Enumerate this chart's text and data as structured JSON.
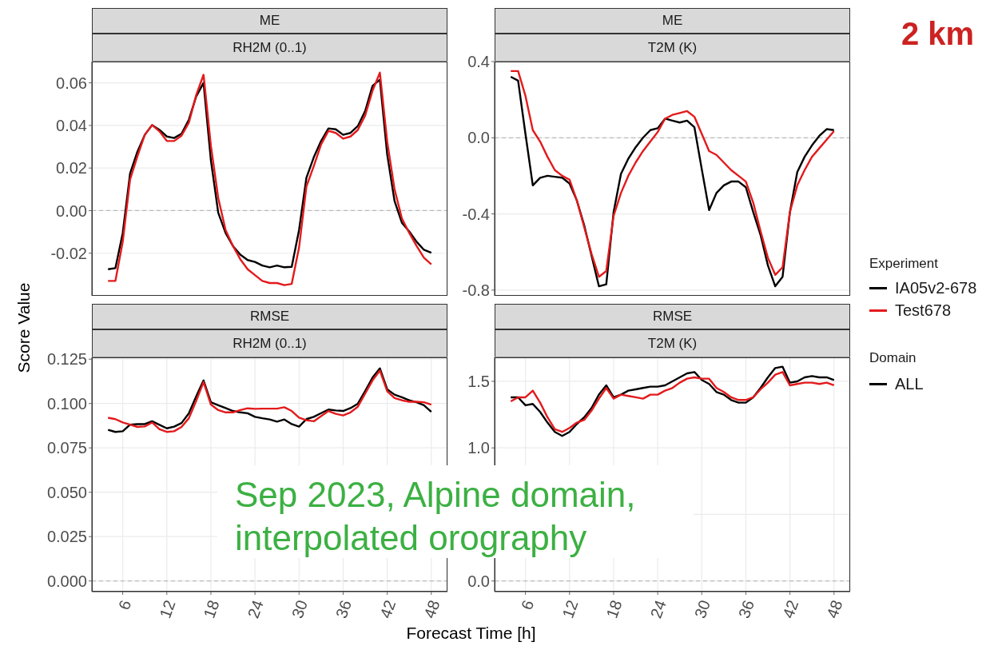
{
  "chart_data": [
    {
      "type": "line",
      "title": "ME",
      "subtitle": "RH2M (0..1)",
      "ylabel": "Score Value",
      "x": [
        4,
        5,
        6,
        7,
        8,
        9,
        10,
        11,
        12,
        13,
        14,
        15,
        16,
        17,
        18,
        19,
        20,
        21,
        22,
        23,
        24,
        25,
        26,
        27,
        28,
        29,
        30,
        31,
        32,
        33,
        34,
        35,
        36,
        37,
        38,
        39,
        40,
        41,
        42,
        43,
        44,
        45,
        46,
        47,
        48
      ],
      "xlim": [
        1.8,
        50.2
      ],
      "xticks": [
        6,
        12,
        18,
        24,
        30,
        36,
        42,
        48
      ],
      "ylim": [
        -0.04,
        0.07
      ],
      "yticks": [
        -0.02,
        {
          "value": 0,
          "label": "0.00"
        },
        0.02,
        0.04,
        0.06
      ],
      "grid": true,
      "tick_labels": "y",
      "line_style": "solid",
      "marker": "none",
      "legend": "right",
      "legend_title": "Experiment",
      "annotations": [
        "Domain",
        "ALL"
      ],
      "ref_lines": [
        {
          "axis": "y",
          "value": 0,
          "color": "#bbbbbb",
          "line_style": "dashed"
        }
      ],
      "series": [
        {
          "name": "IA05v2-678",
          "color": "#000000",
          "values": [
            -0.0275,
            -0.027,
            -0.0105,
            0.0175,
            0.0277,
            0.0356,
            0.0402,
            0.0379,
            0.0348,
            0.0341,
            0.0361,
            0.0427,
            0.0536,
            0.06,
            0.0236,
            -0.001,
            -0.0105,
            -0.0166,
            -0.0207,
            -0.0232,
            -0.0241,
            -0.0258,
            -0.0266,
            -0.0258,
            -0.0266,
            -0.0264,
            -0.0091,
            0.0154,
            0.025,
            0.0327,
            0.0386,
            0.0382,
            0.0356,
            0.0365,
            0.0397,
            0.0468,
            0.0586,
            0.0615,
            0.0263,
            0.0045,
            -0.0057,
            -0.0098,
            -0.0146,
            -0.0184,
            -0.0198
          ]
        },
        {
          "name": "Test678",
          "color": "#e31a1c",
          "values": [
            -0.033,
            -0.033,
            -0.0146,
            0.0147,
            0.0256,
            0.0356,
            0.0402,
            0.0372,
            0.0327,
            0.0327,
            0.0352,
            0.0413,
            0.0543,
            0.0638,
            0.0304,
            0.0059,
            -0.0091,
            -0.0166,
            -0.0228,
            -0.0275,
            -0.0303,
            -0.033,
            -0.034,
            -0.034,
            -0.035,
            -0.0344,
            -0.0173,
            0.0113,
            0.0209,
            0.0311,
            0.0375,
            0.0365,
            0.0338,
            0.0348,
            0.0379,
            0.0447,
            0.0563,
            0.0648,
            0.0324,
            0.01,
            -0.0037,
            -0.0105,
            -0.0166,
            -0.0221,
            -0.0252
          ]
        }
      ]
    },
    {
      "type": "line",
      "title": "ME",
      "subtitle": "T2M (K)",
      "x": [
        4,
        5,
        6,
        7,
        8,
        9,
        10,
        11,
        12,
        13,
        14,
        15,
        16,
        17,
        18,
        19,
        20,
        21,
        22,
        23,
        24,
        25,
        26,
        27,
        28,
        29,
        30,
        31,
        32,
        33,
        34,
        35,
        36,
        37,
        38,
        39,
        40,
        41,
        42,
        43,
        44,
        45,
        46,
        47,
        48
      ],
      "xlim": [
        1.8,
        50.2
      ],
      "xticks": [
        6,
        12,
        18,
        24,
        30,
        36,
        42,
        48
      ],
      "ylim": [
        -0.83,
        0.4
      ],
      "yticks": [
        -0.8,
        -0.4,
        {
          "value": 0,
          "label": "0.0"
        },
        0.4
      ],
      "grid": true,
      "tick_labels": "y",
      "line_style": "solid",
      "marker": "none",
      "annotations": [
        "2 km"
      ],
      "ref_lines": [
        {
          "axis": "y",
          "value": 0,
          "color": "#bbbbbb",
          "line_style": "dashed"
        }
      ],
      "series": [
        {
          "color": "#000000",
          "values": [
            0.32,
            0.3,
            0.02,
            -0.25,
            -0.21,
            -0.2,
            -0.205,
            -0.21,
            -0.24,
            -0.33,
            -0.46,
            -0.62,
            -0.78,
            -0.77,
            -0.39,
            -0.19,
            -0.11,
            -0.05,
            0.0,
            0.04,
            0.05,
            0.1,
            0.09,
            0.08,
            0.09,
            0.055,
            -0.165,
            -0.38,
            -0.29,
            -0.25,
            -0.23,
            -0.23,
            -0.26,
            -0.39,
            -0.51,
            -0.67,
            -0.78,
            -0.73,
            -0.39,
            -0.18,
            -0.1,
            -0.04,
            0.01,
            0.045,
            0.04
          ]
        },
        {
          "color": "#e31a1c",
          "values": [
            0.35,
            0.35,
            0.22,
            0.04,
            -0.02,
            -0.1,
            -0.17,
            -0.2,
            -0.22,
            -0.33,
            -0.47,
            -0.61,
            -0.73,
            -0.7,
            -0.41,
            -0.29,
            -0.2,
            -0.13,
            -0.07,
            -0.02,
            0.03,
            0.1,
            0.12,
            0.13,
            0.14,
            0.11,
            0.02,
            -0.07,
            -0.09,
            -0.13,
            -0.17,
            -0.2,
            -0.23,
            -0.34,
            -0.49,
            -0.63,
            -0.72,
            -0.68,
            -0.39,
            -0.25,
            -0.17,
            -0.1,
            -0.055,
            -0.01,
            0.035
          ]
        }
      ]
    },
    {
      "type": "line",
      "title": "RMSE",
      "subtitle": "RH2M (0..1)",
      "xlabel": "Forecast Time [h]",
      "x": [
        4,
        5,
        6,
        7,
        8,
        9,
        10,
        11,
        12,
        13,
        14,
        15,
        16,
        17,
        18,
        19,
        20,
        21,
        22,
        23,
        24,
        25,
        26,
        27,
        28,
        29,
        30,
        31,
        32,
        33,
        34,
        35,
        36,
        37,
        38,
        39,
        40,
        41,
        42,
        43,
        44,
        45,
        46,
        47,
        48
      ],
      "xlim": [
        1.8,
        50.2
      ],
      "xticks": [
        6,
        12,
        18,
        24,
        30,
        36,
        42,
        48
      ],
      "ylim": [
        -0.006,
        0.126
      ],
      "yticks": [
        {
          "value": 0,
          "label": "0.000"
        },
        0.025,
        {
          "value": 0.05,
          "label": "0.050"
        },
        0.075,
        {
          "value": 0.1,
          "label": "0.100"
        },
        0.125
      ],
      "grid": true,
      "line_style": "solid",
      "marker": "none",
      "annotations": [
        "Sep 2023, Alpine domain, interpolated orography"
      ],
      "ref_lines": [
        {
          "axis": "y",
          "value": 0,
          "color": "#bbbbbb",
          "line_style": "dashed"
        }
      ],
      "series": [
        {
          "color": "#000000",
          "values": [
            0.0852,
            0.084,
            0.0844,
            0.0881,
            0.0884,
            0.0884,
            0.09,
            0.088,
            0.086,
            0.087,
            0.089,
            0.0945,
            0.104,
            0.113,
            0.1007,
            0.099,
            0.0974,
            0.0958,
            0.095,
            0.0945,
            0.0925,
            0.0917,
            0.091,
            0.0898,
            0.091,
            0.0884,
            0.087,
            0.0912,
            0.0925,
            0.0946,
            0.0966,
            0.0961,
            0.0958,
            0.0974,
            0.0999,
            0.107,
            0.1146,
            0.1198,
            0.108,
            0.105,
            0.1035,
            0.1018,
            0.1007,
            0.099,
            0.0953
          ]
        },
        {
          "color": "#e31a1c",
          "values": [
            0.092,
            0.0912,
            0.0893,
            0.0881,
            0.0868,
            0.0871,
            0.0893,
            0.0855,
            0.084,
            0.0844,
            0.0868,
            0.0917,
            0.1015,
            0.1121,
            0.0994,
            0.0963,
            0.095,
            0.095,
            0.0963,
            0.0973,
            0.097,
            0.0971,
            0.0971,
            0.0971,
            0.0979,
            0.0958,
            0.092,
            0.0906,
            0.09,
            0.0929,
            0.0958,
            0.0942,
            0.0933,
            0.095,
            0.0982,
            0.1056,
            0.113,
            0.1186,
            0.1069,
            0.1031,
            0.1018,
            0.101,
            0.101,
            0.1007,
            0.0994
          ]
        }
      ]
    },
    {
      "type": "line",
      "title": "RMSE",
      "subtitle": "T2M (K)",
      "x": [
        4,
        5,
        6,
        7,
        8,
        9,
        10,
        11,
        12,
        13,
        14,
        15,
        16,
        17,
        18,
        19,
        20,
        21,
        22,
        23,
        24,
        25,
        26,
        27,
        28,
        29,
        30,
        31,
        32,
        33,
        34,
        35,
        36,
        37,
        38,
        39,
        40,
        41,
        42,
        43,
        44,
        45,
        46,
        47,
        48
      ],
      "xlim": [
        1.8,
        50.2
      ],
      "xticks": [
        6,
        12,
        18,
        24,
        30,
        36,
        42,
        48
      ],
      "ylim": [
        -0.08,
        1.68
      ],
      "yticks": [
        {
          "value": 0,
          "label": "0.0"
        },
        {
          "value": 0.5,
          "label": null
        },
        {
          "value": 1,
          "label": "1.0"
        },
        1.5
      ],
      "grid": true,
      "line_style": "solid",
      "marker": "none",
      "ref_lines": [
        {
          "axis": "y",
          "value": 0,
          "color": "#bbbbbb",
          "line_style": "dashed"
        }
      ],
      "series": [
        {
          "color": "#000000",
          "values": [
            1.38,
            1.38,
            1.32,
            1.33,
            1.27,
            1.19,
            1.12,
            1.09,
            1.12,
            1.18,
            1.23,
            1.3,
            1.4,
            1.47,
            1.38,
            1.4,
            1.43,
            1.44,
            1.45,
            1.46,
            1.46,
            1.47,
            1.5,
            1.53,
            1.56,
            1.57,
            1.51,
            1.48,
            1.42,
            1.4,
            1.36,
            1.34,
            1.34,
            1.38,
            1.45,
            1.53,
            1.6,
            1.61,
            1.49,
            1.5,
            1.53,
            1.54,
            1.53,
            1.53,
            1.51
          ]
        },
        {
          "color": "#e31a1c",
          "values": [
            1.35,
            1.38,
            1.38,
            1.43,
            1.34,
            1.23,
            1.14,
            1.12,
            1.15,
            1.19,
            1.21,
            1.28,
            1.37,
            1.45,
            1.37,
            1.4,
            1.39,
            1.38,
            1.37,
            1.4,
            1.4,
            1.43,
            1.45,
            1.49,
            1.52,
            1.53,
            1.52,
            1.52,
            1.45,
            1.42,
            1.38,
            1.36,
            1.36,
            1.38,
            1.44,
            1.49,
            1.55,
            1.57,
            1.47,
            1.48,
            1.49,
            1.49,
            1.48,
            1.49,
            1.47
          ]
        }
      ]
    }
  ]
}
